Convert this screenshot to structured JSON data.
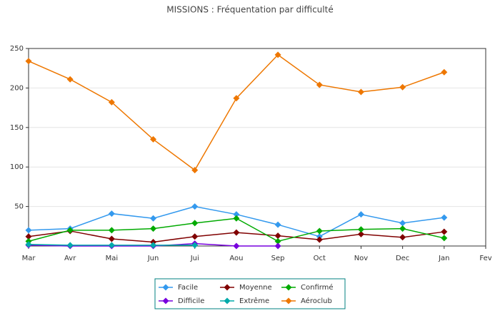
{
  "chart_data": {
    "type": "line",
    "title": "MISSIONS : Fréquentation par difficulté",
    "categories": [
      "Mar",
      "Avr",
      "Mai",
      "Jun",
      "Jui",
      "Aou",
      "Sep",
      "Oct",
      "Nov",
      "Dec",
      "Jan",
      "Fev"
    ],
    "series": [
      {
        "name": "Facile",
        "color": "#3399ee",
        "values": [
          20,
          22,
          41,
          35,
          50,
          40,
          27,
          12,
          40,
          29,
          36,
          null
        ]
      },
      {
        "name": "Moyenne",
        "color": "#800000",
        "values": [
          12,
          19,
          9,
          5,
          12,
          17,
          13,
          8,
          15,
          11,
          18,
          null
        ]
      },
      {
        "name": "Confirmé",
        "color": "#00aa00",
        "values": [
          6,
          20,
          20,
          22,
          29,
          35,
          6,
          19,
          21,
          22,
          10,
          null
        ]
      },
      {
        "name": "Difficile",
        "color": "#7700dd",
        "values": [
          1,
          0,
          0,
          0,
          3,
          0,
          0,
          null,
          null,
          null,
          null,
          null
        ]
      },
      {
        "name": "Extrême",
        "color": "#00aaaa",
        "values": [
          2,
          1,
          1,
          1,
          1,
          null,
          null,
          null,
          null,
          null,
          null,
          null
        ]
      },
      {
        "name": "Aéroclub",
        "color": "#ee7700",
        "values": [
          234,
          211,
          182,
          135,
          96,
          187,
          242,
          204,
          195,
          201,
          220,
          null
        ]
      }
    ],
    "ylim": [
      0,
      250
    ],
    "yticks": [
      50,
      100,
      150,
      200,
      250
    ],
    "grid": true,
    "legend": "bottom"
  }
}
